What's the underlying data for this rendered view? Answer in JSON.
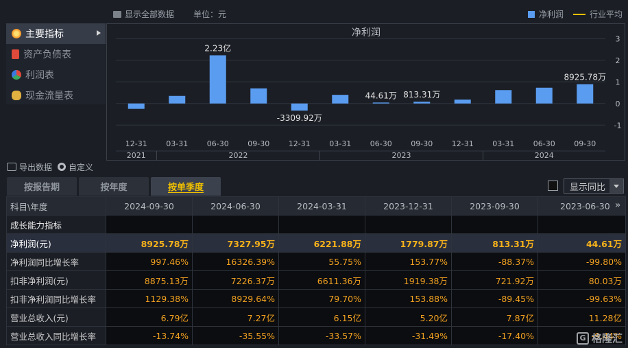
{
  "topbar": {
    "show_all": "显示全部数据",
    "unit": "单位：元"
  },
  "legend": {
    "bar": "净利润",
    "line": "行业平均",
    "bar_color": "#5a9cf0",
    "line_color": "#f0c000"
  },
  "nav": {
    "items": [
      {
        "label": "主要指标",
        "icon": "flower-icon"
      },
      {
        "label": "资产负债表",
        "icon": "document-icon"
      },
      {
        "label": "利润表",
        "icon": "pie-icon"
      },
      {
        "label": "现金流量表",
        "icon": "coins-icon"
      }
    ]
  },
  "chart_data": {
    "type": "bar",
    "title": "净利润",
    "categories": [
      "12-31",
      "03-31",
      "06-30",
      "09-30",
      "12-31",
      "03-31",
      "06-30",
      "09-30",
      "12-31",
      "03-31",
      "06-30",
      "09-30"
    ],
    "years": [
      {
        "label": "2021",
        "from": 0,
        "to": 0
      },
      {
        "label": "2022",
        "from": 1,
        "to": 4
      },
      {
        "label": "2023",
        "from": 5,
        "to": 8
      },
      {
        "label": "2024",
        "from": 9,
        "to": 11
      }
    ],
    "values": [
      -0.25,
      0.35,
      2.23,
      0.7,
      -0.331,
      0.4,
      0.0446,
      0.0813,
      0.18,
      0.62,
      0.73,
      0.893
    ],
    "labels": [
      "",
      "",
      "2.23亿",
      "",
      "-3309.92万",
      "",
      "44.61万",
      "813.31万",
      "",
      "",
      "",
      "8925.78万"
    ],
    "yticks": [
      3,
      2,
      1,
      0,
      -1
    ],
    "ylim": [
      -1.5,
      3.2
    ]
  },
  "tools": {
    "export": "导出数据",
    "custom": "自定义"
  },
  "tabs": [
    "按报告期",
    "按年度",
    "按单季度"
  ],
  "compare": {
    "label": "显示同比"
  },
  "table": {
    "header": [
      "科目\\年度",
      "2024-09-30",
      "2024-06-30",
      "2024-03-31",
      "2023-12-31",
      "2023-09-30",
      "2023-06-30"
    ],
    "section": "成长能力指标",
    "rows": [
      {
        "label": "净利润(元)",
        "values": [
          "8925.78万",
          "7327.95万",
          "6221.88万",
          "1779.87万",
          "813.31万",
          "44.61万"
        ]
      },
      {
        "label": "净利润同比增长率",
        "values": [
          "997.46%",
          "16326.39%",
          "55.75%",
          "153.77%",
          "-88.37%",
          "-99.80%"
        ]
      },
      {
        "label": "扣非净利润(元)",
        "values": [
          "8875.13万",
          "7226.37万",
          "6611.36万",
          "1919.38万",
          "721.92万",
          "80.03万"
        ]
      },
      {
        "label": "扣非净利润同比增长率",
        "values": [
          "1129.38%",
          "8929.64%",
          "79.70%",
          "153.88%",
          "-89.45%",
          "-99.63%"
        ]
      },
      {
        "label": "营业总收入(元)",
        "values": [
          "6.79亿",
          "7.27亿",
          "6.15亿",
          "5.20亿",
          "7.87亿",
          "11.28亿"
        ]
      },
      {
        "label": "营业总收入同比增长率",
        "values": [
          "-13.74%",
          "-35.55%",
          "-33.57%",
          "-31.49%",
          "-17.40%",
          "-9.44%"
        ]
      }
    ]
  },
  "watermark": "格隆汇"
}
